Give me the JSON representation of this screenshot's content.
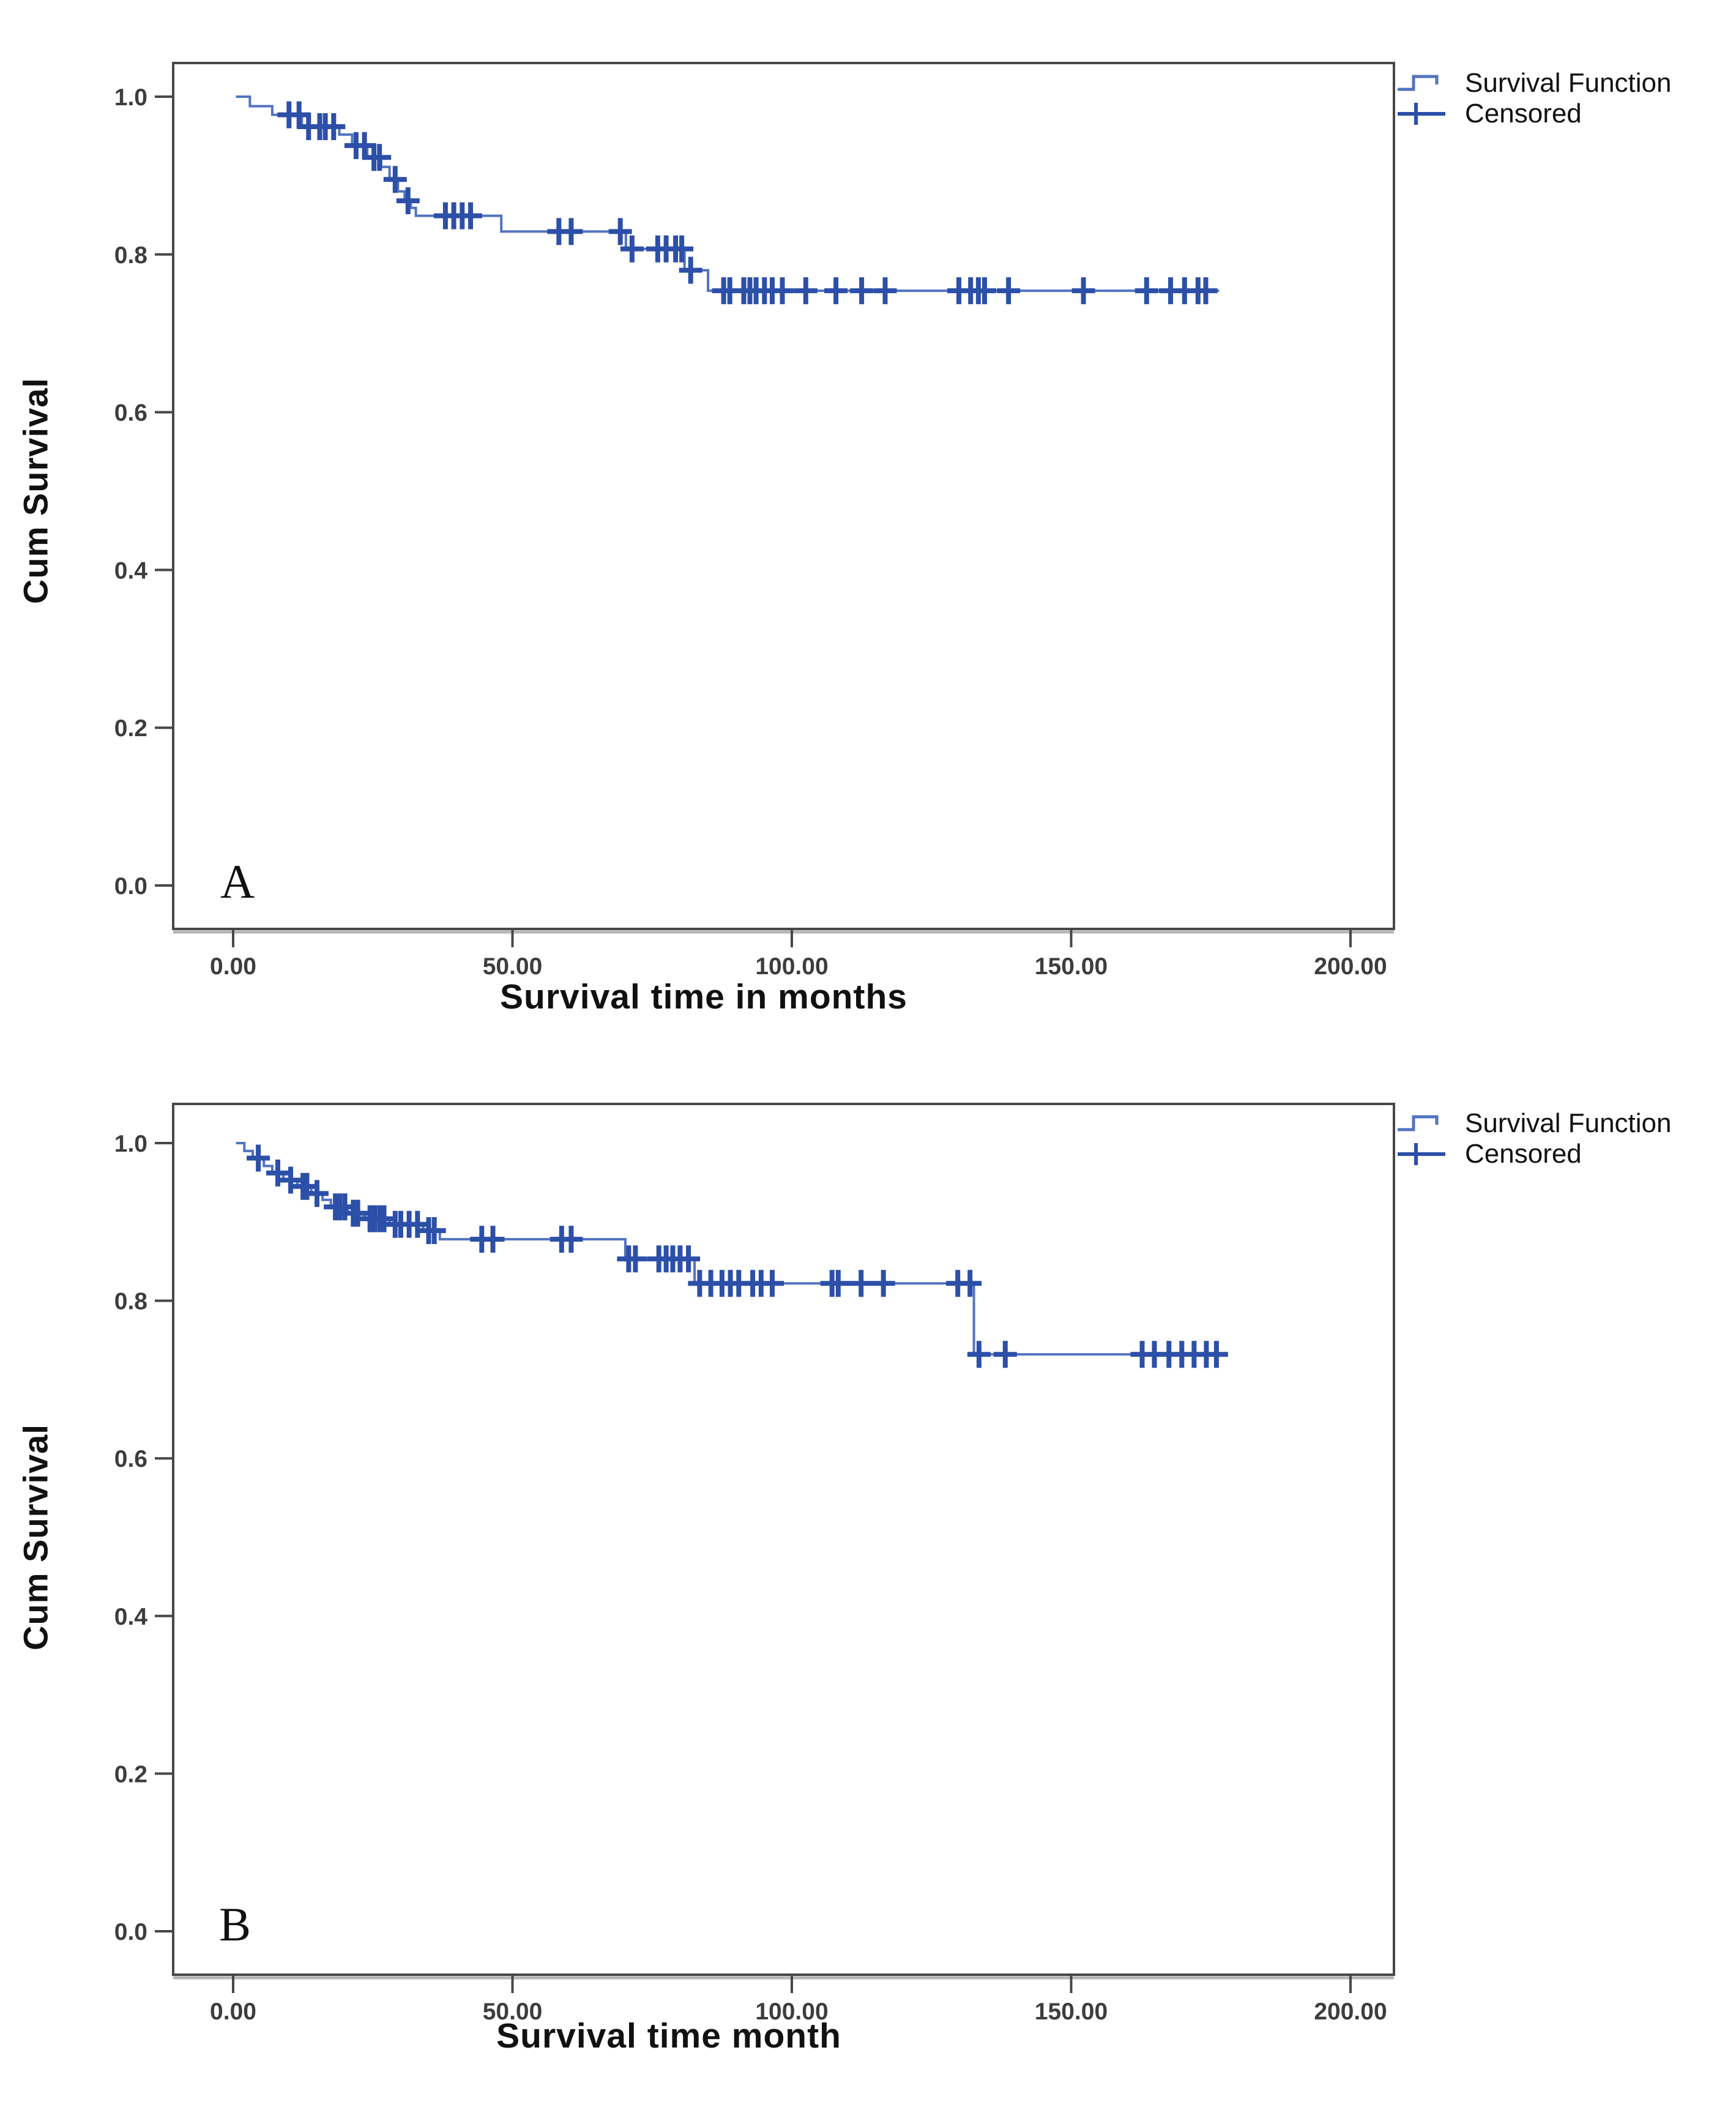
{
  "page": {
    "background": "#ffffff"
  },
  "chart_data": [
    {
      "type": "line",
      "subtype": "kaplan-meier-step-curve",
      "panel_label": "A",
      "title": "",
      "xlabel": "Survival time in months",
      "ylabel": "Cum Survival",
      "legend": [
        "Survival Function",
        "Censored"
      ],
      "legend_position": "top-right-outside",
      "grid": false,
      "xlim": [
        0,
        207
      ],
      "ylim": [
        0,
        1.04
      ],
      "x_ticks": {
        "values": [
          0,
          50,
          100,
          150,
          200
        ],
        "labels": [
          "0.00",
          "50.00",
          "100.00",
          "150.00",
          "200.00"
        ]
      },
      "y_ticks": {
        "values": [
          1.0,
          0.8,
          0.6,
          0.4,
          0.2,
          0.0
        ],
        "labels": [
          "1.0",
          "0.8",
          "0.6",
          "0.4",
          "0.2",
          "0.0"
        ]
      },
      "line_color": "#5273c0",
      "censor_color": "#2c4fa8",
      "axis_color": "#474747",
      "tick_text_color": "#3d3d3d",
      "end_time": 176.5,
      "steps": [
        [
          0.5,
          1.0
        ],
        [
          3,
          0.988
        ],
        [
          7,
          0.977
        ],
        [
          12.3,
          0.962
        ],
        [
          19,
          0.952
        ],
        [
          21.3,
          0.938
        ],
        [
          24,
          0.923
        ],
        [
          26.5,
          0.911
        ],
        [
          28,
          0.895
        ],
        [
          29.5,
          0.88
        ],
        [
          30.7,
          0.868
        ],
        [
          31.8,
          0.859
        ],
        [
          32.7,
          0.849
        ],
        [
          48,
          0.829
        ],
        [
          70.3,
          0.807
        ],
        [
          80.8,
          0.78
        ],
        [
          85,
          0.754
        ]
      ],
      "censored": [
        [
          10,
          0.977
        ],
        [
          11.8,
          0.977
        ],
        [
          13.5,
          0.962
        ],
        [
          15.5,
          0.962
        ],
        [
          16.5,
          0.962
        ],
        [
          18,
          0.962
        ],
        [
          22,
          0.938
        ],
        [
          23.5,
          0.938
        ],
        [
          25.2,
          0.923
        ],
        [
          26.2,
          0.923
        ],
        [
          29,
          0.895
        ],
        [
          31.3,
          0.868
        ],
        [
          38,
          0.849
        ],
        [
          39.5,
          0.849
        ],
        [
          41,
          0.849
        ],
        [
          42.5,
          0.849
        ],
        [
          58.3,
          0.829
        ],
        [
          60.5,
          0.829
        ],
        [
          69.3,
          0.829
        ],
        [
          71.4,
          0.807
        ],
        [
          76,
          0.807
        ],
        [
          77.5,
          0.807
        ],
        [
          79.2,
          0.807
        ],
        [
          80.3,
          0.807
        ],
        [
          81.9,
          0.78
        ],
        [
          87.8,
          0.754
        ],
        [
          88.9,
          0.754
        ],
        [
          91.4,
          0.754
        ],
        [
          92.5,
          0.754
        ],
        [
          93.6,
          0.754
        ],
        [
          95.1,
          0.754
        ],
        [
          96.5,
          0.754
        ],
        [
          98.3,
          0.754
        ],
        [
          102.5,
          0.754
        ],
        [
          107.9,
          0.754
        ],
        [
          112.5,
          0.754
        ],
        [
          116.7,
          0.754
        ],
        [
          129.9,
          0.754
        ],
        [
          132,
          0.754
        ],
        [
          133.4,
          0.754
        ],
        [
          134.5,
          0.754
        ],
        [
          138.8,
          0.754
        ],
        [
          152.2,
          0.754
        ],
        [
          163.5,
          0.754
        ],
        [
          167.8,
          0.754
        ],
        [
          170.3,
          0.754
        ],
        [
          172.7,
          0.754
        ],
        [
          174.1,
          0.754
        ]
      ]
    },
    {
      "type": "line",
      "subtype": "kaplan-meier-step-curve",
      "panel_label": "B",
      "title": "",
      "xlabel": "Survival time month",
      "ylabel": "Cum Survival",
      "legend": [
        "Survival Function",
        "Censored"
      ],
      "legend_position": "top-right-outside",
      "grid": false,
      "xlim": [
        0,
        207
      ],
      "ylim": [
        0,
        1.04
      ],
      "x_ticks": {
        "values": [
          0,
          50,
          100,
          150,
          200
        ],
        "labels": [
          "0.00",
          "50.00",
          "100.00",
          "150.00",
          "200.00"
        ]
      },
      "y_ticks": {
        "values": [
          1.0,
          0.8,
          0.6,
          0.4,
          0.2,
          0.0
        ],
        "labels": [
          "1.0",
          "0.8",
          "0.6",
          "0.4",
          "0.2",
          "0.0"
        ]
      },
      "line_color": "#5273c0",
      "censor_color": "#2c4fa8",
      "axis_color": "#474747",
      "tick_text_color": "#3d3d3d",
      "end_time": 177,
      "steps": [
        [
          0.5,
          1.0
        ],
        [
          2,
          0.99
        ],
        [
          3.5,
          0.981
        ],
        [
          5.5,
          0.971
        ],
        [
          7,
          0.962
        ],
        [
          9,
          0.953
        ],
        [
          11.5,
          0.945
        ],
        [
          14,
          0.936
        ],
        [
          16,
          0.928
        ],
        [
          17.5,
          0.919
        ],
        [
          20.5,
          0.911
        ],
        [
          23.5,
          0.904
        ],
        [
          28,
          0.897
        ],
        [
          34,
          0.889
        ],
        [
          37,
          0.878
        ],
        [
          70.2,
          0.853
        ],
        [
          82.6,
          0.822
        ],
        [
          132.6,
          0.732
        ]
      ],
      "censored": [
        [
          4.5,
          0.981
        ],
        [
          8,
          0.962
        ],
        [
          10.3,
          0.953
        ],
        [
          12.5,
          0.945
        ],
        [
          13.2,
          0.945
        ],
        [
          15,
          0.936
        ],
        [
          18.3,
          0.919
        ],
        [
          19.1,
          0.919
        ],
        [
          20,
          0.919
        ],
        [
          21.5,
          0.911
        ],
        [
          22.3,
          0.911
        ],
        [
          24.5,
          0.904
        ],
        [
          25.3,
          0.904
        ],
        [
          26.2,
          0.904
        ],
        [
          27,
          0.904
        ],
        [
          29,
          0.897
        ],
        [
          30,
          0.897
        ],
        [
          31.5,
          0.897
        ],
        [
          33,
          0.897
        ],
        [
          35,
          0.889
        ],
        [
          36,
          0.889
        ],
        [
          44.5,
          0.878
        ],
        [
          46.5,
          0.878
        ],
        [
          58.8,
          0.878
        ],
        [
          60.5,
          0.878
        ],
        [
          70.8,
          0.853
        ],
        [
          72,
          0.853
        ],
        [
          76.2,
          0.853
        ],
        [
          77.5,
          0.853
        ],
        [
          78.7,
          0.853
        ],
        [
          80,
          0.853
        ],
        [
          81.5,
          0.853
        ],
        [
          83.5,
          0.822
        ],
        [
          85.5,
          0.822
        ],
        [
          87.5,
          0.822
        ],
        [
          89,
          0.822
        ],
        [
          90.5,
          0.822
        ],
        [
          93,
          0.822
        ],
        [
          94.5,
          0.822
        ],
        [
          96.5,
          0.822
        ],
        [
          107.2,
          0.822
        ],
        [
          108.3,
          0.822
        ],
        [
          112.4,
          0.822
        ],
        [
          116.4,
          0.822
        ],
        [
          129.7,
          0.822
        ],
        [
          131.9,
          0.822
        ],
        [
          133.5,
          0.732
        ],
        [
          138.2,
          0.732
        ],
        [
          162.7,
          0.732
        ],
        [
          164.9,
          0.732
        ],
        [
          167.5,
          0.732
        ],
        [
          169.8,
          0.732
        ],
        [
          172,
          0.732
        ],
        [
          174.2,
          0.732
        ],
        [
          176,
          0.732
        ]
      ]
    }
  ]
}
